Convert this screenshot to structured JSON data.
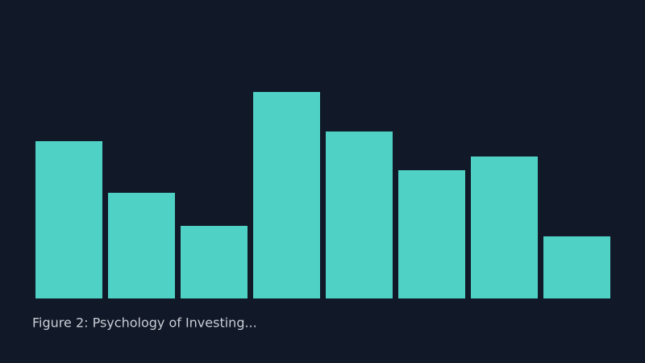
{
  "chart_data": {
    "type": "bar",
    "caption": "Figure 2: Psychology of Investing...",
    "categories": [
      null,
      null,
      null,
      null,
      null,
      null,
      null,
      null
    ],
    "values": [
      195,
      131,
      90,
      256,
      207,
      159,
      176,
      77
    ],
    "color": "#4fd1c5",
    "ylim": [
      0,
      300
    ]
  }
}
